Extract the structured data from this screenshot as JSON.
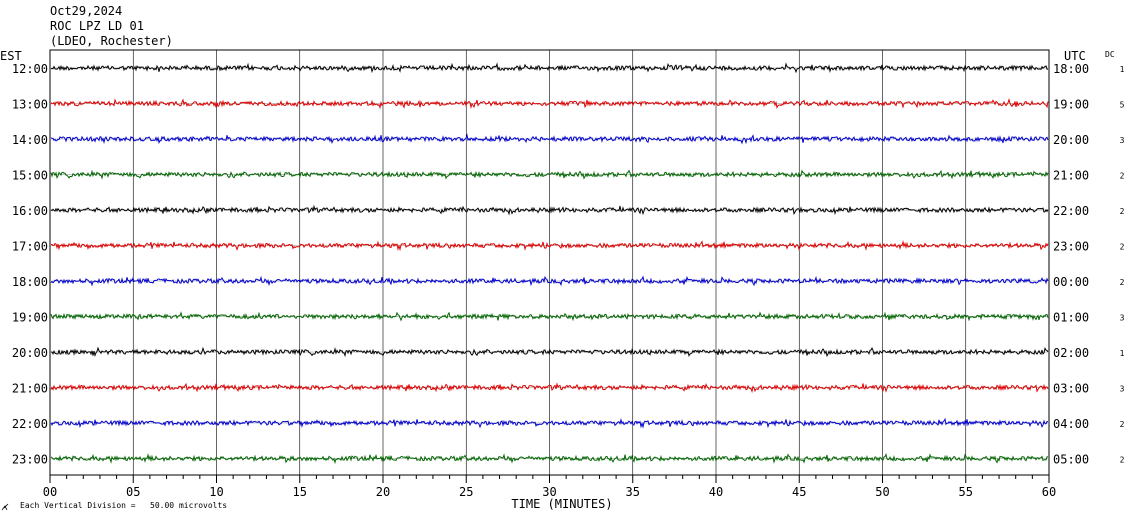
{
  "header": {
    "date": "Oct29,2024",
    "station": "ROC LPZ LD 01",
    "network": "(LDEO, Rochester)"
  },
  "chart_data": {
    "type": "line",
    "title": "",
    "left_axis_label": "EST",
    "right_axis_label": "UTC",
    "dc_label": "DC",
    "xlabel": "TIME (MINUTES)",
    "xlim": [
      0,
      60
    ],
    "x_ticks": [
      "00",
      "05",
      "10",
      "15",
      "20",
      "25",
      "30",
      "35",
      "40",
      "45",
      "50",
      "55",
      "60"
    ],
    "x_minor_tick_step": 1,
    "grid": true,
    "footnote": "Each Vertical Division =   50.00 microvolts",
    "traces": [
      {
        "local": "12:00",
        "utc": "18:00",
        "dc": "1",
        "color": "#000000"
      },
      {
        "local": "13:00",
        "utc": "19:00",
        "dc": "5",
        "color": "#dd0000"
      },
      {
        "local": "14:00",
        "utc": "20:00",
        "dc": "3",
        "color": "#0000cc"
      },
      {
        "local": "15:00",
        "utc": "21:00",
        "dc": "2",
        "color": "#006600"
      },
      {
        "local": "16:00",
        "utc": "22:00",
        "dc": "2",
        "color": "#000000"
      },
      {
        "local": "17:00",
        "utc": "23:00",
        "dc": "2",
        "color": "#dd0000"
      },
      {
        "local": "18:00",
        "utc": "00:00",
        "dc": "2",
        "color": "#0000cc"
      },
      {
        "local": "19:00",
        "utc": "01:00",
        "dc": "3",
        "color": "#006600"
      },
      {
        "local": "20:00",
        "utc": "02:00",
        "dc": "1",
        "color": "#000000"
      },
      {
        "local": "21:00",
        "utc": "03:00",
        "dc": "3",
        "color": "#dd0000"
      },
      {
        "local": "22:00",
        "utc": "04:00",
        "dc": "2",
        "color": "#0000cc"
      },
      {
        "local": "23:00",
        "utc": "05:00",
        "dc": "2",
        "color": "#006600"
      }
    ]
  }
}
